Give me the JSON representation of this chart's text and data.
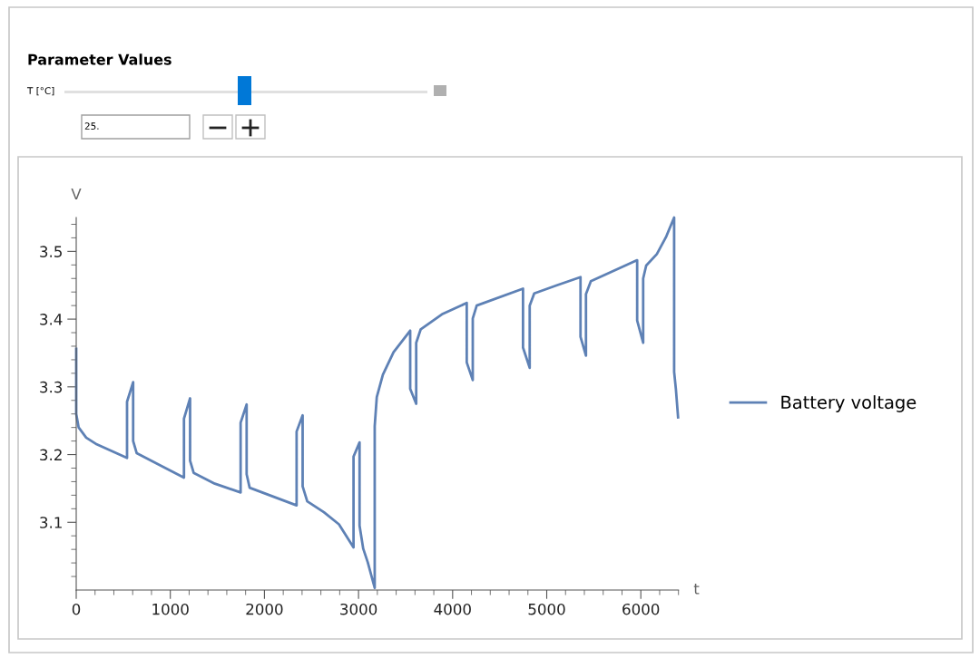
{
  "chart_data": {
    "type": "line",
    "title": "Parameter Values",
    "annotations": [
      "T [°C]",
      "25."
    ],
    "xlabel": "t",
    "ylabel": "V",
    "series": [
      {
        "name": "Battery voltage",
        "color": "#5e81b5",
        "x": [
          0,
          0,
          26,
          106,
          219,
          540,
          540,
          605,
          605,
          643,
          1145,
          1145,
          1210,
          1210,
          1248,
          1473,
          1747,
          1747,
          1811,
          1811,
          1843,
          2342,
          2342,
          2406,
          2406,
          2455,
          2632,
          2792,
          2947,
          2947,
          3011,
          3011,
          3050,
          3098,
          3172,
          3172,
          3194,
          3259,
          3372,
          3549,
          3549,
          3613,
          3613,
          3661,
          3886,
          4150,
          4150,
          4214,
          4214,
          4256,
          4748,
          4748,
          4819,
          4819,
          4867,
          5108,
          5359,
          5359,
          5417,
          5417,
          5469,
          5961,
          5961,
          6025,
          6025,
          6057,
          6170,
          6267,
          6354,
          6354,
          6373,
          6396
        ],
        "values": [
          3.356,
          3.26,
          3.24,
          3.225,
          3.215,
          3.195,
          3.278,
          3.307,
          3.22,
          3.202,
          3.166,
          3.253,
          3.283,
          3.191,
          3.173,
          3.157,
          3.144,
          3.247,
          3.274,
          3.171,
          3.151,
          3.125,
          3.234,
          3.258,
          3.153,
          3.131,
          3.115,
          3.097,
          3.063,
          3.197,
          3.218,
          3.095,
          3.061,
          3.041,
          3.003,
          3.242,
          3.285,
          3.318,
          3.351,
          3.383,
          3.297,
          3.275,
          3.365,
          3.385,
          3.407,
          3.424,
          3.336,
          3.31,
          3.401,
          3.42,
          3.445,
          3.358,
          3.328,
          3.42,
          3.438,
          3.45,
          3.462,
          3.374,
          3.346,
          3.437,
          3.456,
          3.487,
          3.398,
          3.365,
          3.46,
          3.479,
          3.496,
          3.521,
          3.55,
          3.322,
          3.296,
          3.255
        ]
      }
    ],
    "xlim": [
      0,
      6400
    ],
    "ylim": [
      3.0,
      3.55
    ],
    "xticks": [
      0,
      {
        "value": 200,
        "label": null
      },
      {
        "value": 400,
        "label": null
      },
      {
        "value": 600,
        "label": null
      },
      {
        "value": 800,
        "label": null
      },
      1000,
      {
        "value": 1200,
        "label": null
      },
      {
        "value": 1400,
        "label": null
      },
      {
        "value": 1600,
        "label": null
      },
      {
        "value": 1800,
        "label": null
      },
      2000,
      {
        "value": 2200,
        "label": null
      },
      {
        "value": 2400,
        "label": null
      },
      {
        "value": 2600,
        "label": null
      },
      {
        "value": 2800,
        "label": null
      },
      3000,
      {
        "value": 3200,
        "label": null
      },
      {
        "value": 3400,
        "label": null
      },
      {
        "value": 3600,
        "label": null
      },
      {
        "value": 3800,
        "label": null
      },
      4000,
      {
        "value": 4200,
        "label": null
      },
      {
        "value": 4400,
        "label": null
      },
      {
        "value": 4600,
        "label": null
      },
      {
        "value": 4800,
        "label": null
      },
      5000,
      {
        "value": 5200,
        "label": null
      },
      {
        "value": 5400,
        "label": null
      },
      {
        "value": 5600,
        "label": null
      },
      {
        "value": 5800,
        "label": null
      },
      6000,
      {
        "value": 6200,
        "label": null
      },
      {
        "value": 6400,
        "label": null
      }
    ],
    "yticks": [
      {
        "value": 3.02,
        "label": null
      },
      {
        "value": 3.04,
        "label": null
      },
      {
        "value": 3.06,
        "label": null
      },
      {
        "value": 3.08,
        "label": null
      },
      3.1,
      {
        "value": 3.12,
        "label": null
      },
      {
        "value": 3.14,
        "label": null
      },
      {
        "value": 3.16,
        "label": null
      },
      {
        "value": 3.18,
        "label": null
      },
      3.2,
      {
        "value": 3.22,
        "label": null
      },
      {
        "value": 3.24,
        "label": null
      },
      {
        "value": 3.26,
        "label": null
      },
      {
        "value": 3.28,
        "label": null
      },
      3.3,
      {
        "value": 3.32,
        "label": null
      },
      {
        "value": 3.34,
        "label": null
      },
      {
        "value": 3.36,
        "label": null
      },
      {
        "value": 3.38,
        "label": null
      },
      3.4,
      {
        "value": 3.42,
        "label": null
      },
      {
        "value": 3.44,
        "label": null
      },
      {
        "value": 3.46,
        "label": null
      },
      {
        "value": 3.48,
        "label": null
      },
      3.5,
      {
        "value": 3.52,
        "label": null
      },
      {
        "value": 3.54,
        "label": null
      }
    ],
    "grid": false,
    "legend": "right",
    "line_style": "solid",
    "marker": "none"
  }
}
